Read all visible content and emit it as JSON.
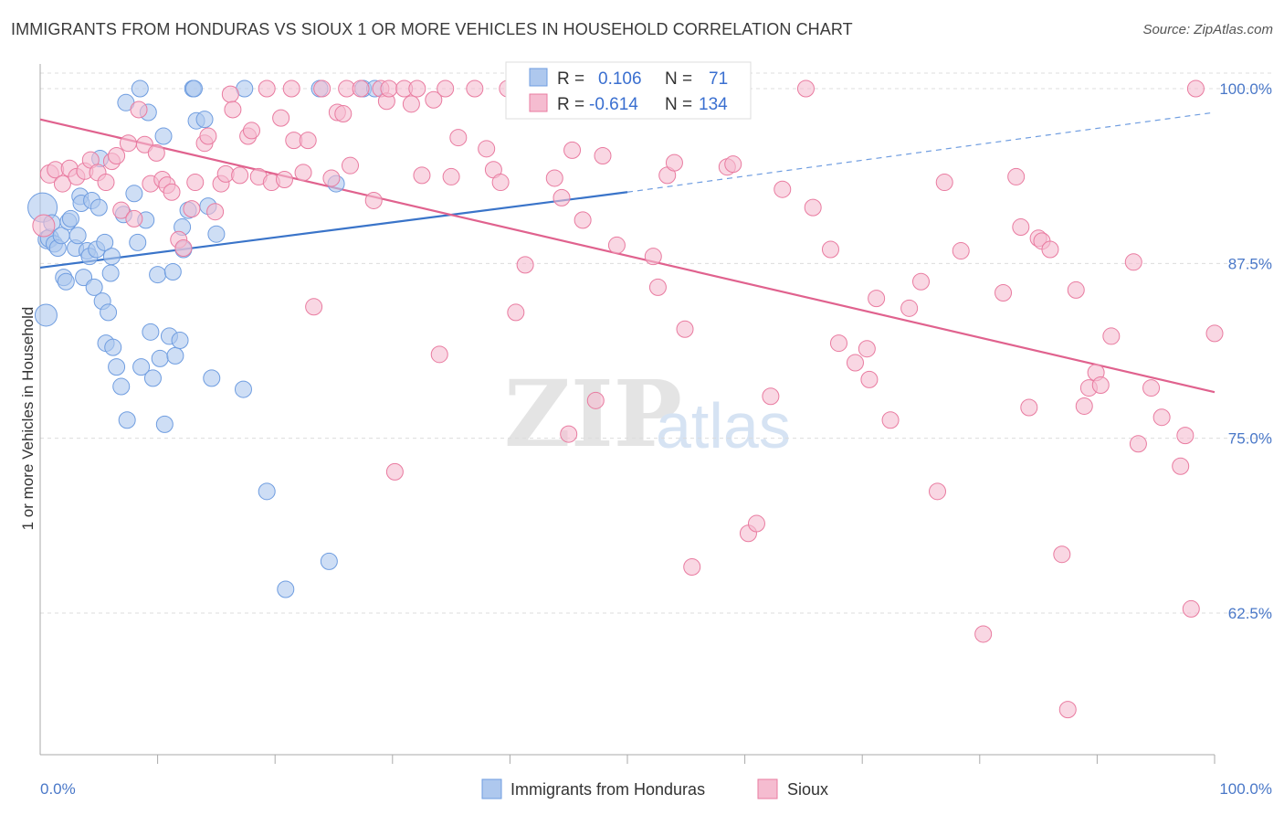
{
  "header": {
    "title": "IMMIGRANTS FROM HONDURAS VS SIOUX 1 OR MORE VEHICLES IN HOUSEHOLD CORRELATION CHART",
    "source": "Source: ZipAtlas.com"
  },
  "watermark": {
    "zip": "ZIP",
    "atlas": "atlas"
  },
  "chart_data": {
    "type": "scatter",
    "title": "IMMIGRANTS FROM HONDURAS VS SIOUX 1 OR MORE VEHICLES IN HOUSEHOLD CORRELATION CHART",
    "xlabel": "",
    "ylabel": "1 or more Vehicles in Household",
    "xlim": [
      0,
      100
    ],
    "ylim": [
      52,
      101
    ],
    "x_tick_labels": [
      "0.0%",
      "100.0%"
    ],
    "y_ticks": [
      {
        "value": 100.0,
        "label": "100.0%"
      },
      {
        "value": 87.5,
        "label": "87.5%"
      },
      {
        "value": 75.0,
        "label": "75.0%"
      },
      {
        "value": 62.5,
        "label": "62.5%"
      }
    ],
    "grid": "horizontal dashed",
    "legend_position": "bottom-center",
    "stats_box": {
      "position": "top-center",
      "rows": [
        {
          "r_label": "R =",
          "r_value": "0.106",
          "n_label": "N =",
          "n_value": "71"
        },
        {
          "r_label": "R =",
          "r_value": "-0.614",
          "n_label": "N =",
          "n_value": "134"
        }
      ]
    },
    "series": [
      {
        "name": "Immigrants from Honduras",
        "color": "#6f9de0",
        "fill": "#aec8ee",
        "trend": {
          "x0": 0,
          "y0": 87.2,
          "x1": 50,
          "y1": 92.6,
          "dash_to": 100,
          "dash_y": 98.3
        },
        "points": [
          [
            0.2,
            91.5,
            16
          ],
          [
            0.5,
            83.8,
            12
          ],
          [
            0.6,
            89.2,
            10
          ],
          [
            0.8,
            89.3,
            10
          ],
          [
            1.0,
            90.4,
            9
          ],
          [
            1.2,
            88.9,
            9
          ],
          [
            1.5,
            88.6,
            9
          ],
          [
            1.8,
            89.5,
            9
          ],
          [
            2.0,
            86.5,
            9
          ],
          [
            2.2,
            86.2,
            9
          ],
          [
            2.4,
            90.5,
            9
          ],
          [
            2.6,
            90.7,
            9
          ],
          [
            3.0,
            88.6,
            9
          ],
          [
            3.2,
            89.5,
            9
          ],
          [
            3.4,
            92.3,
            9
          ],
          [
            3.5,
            91.8,
            9
          ],
          [
            3.7,
            86.5,
            9
          ],
          [
            4.0,
            88.4,
            9
          ],
          [
            4.2,
            88.0,
            9
          ],
          [
            4.4,
            92.0,
            9
          ],
          [
            4.6,
            85.8,
            9
          ],
          [
            4.8,
            88.5,
            9
          ],
          [
            5.0,
            91.5,
            9
          ],
          [
            5.1,
            95.0,
            9
          ],
          [
            5.3,
            84.8,
            9
          ],
          [
            5.5,
            89.0,
            9
          ],
          [
            5.6,
            81.8,
            9
          ],
          [
            5.8,
            84.0,
            9
          ],
          [
            6.1,
            88.0,
            9
          ],
          [
            6.0,
            86.8,
            9
          ],
          [
            6.2,
            81.5,
            9
          ],
          [
            6.5,
            80.1,
            9
          ],
          [
            6.9,
            78.7,
            9
          ],
          [
            7.1,
            91.0,
            9
          ],
          [
            7.3,
            99.0,
            9
          ],
          [
            7.4,
            76.3,
            9
          ],
          [
            8.0,
            92.5,
            9
          ],
          [
            8.3,
            89.0,
            9
          ],
          [
            8.5,
            100.0,
            9
          ],
          [
            8.6,
            80.1,
            9
          ],
          [
            9.0,
            90.6,
            9
          ],
          [
            9.2,
            98.3,
            9
          ],
          [
            9.4,
            82.6,
            9
          ],
          [
            9.6,
            79.3,
            9
          ],
          [
            10.0,
            86.7,
            9
          ],
          [
            10.2,
            80.7,
            9
          ],
          [
            10.5,
            96.6,
            9
          ],
          [
            10.6,
            76.0,
            9
          ],
          [
            11.0,
            82.3,
            9
          ],
          [
            11.3,
            86.9,
            9
          ],
          [
            11.5,
            80.9,
            9
          ],
          [
            11.9,
            82.0,
            9
          ],
          [
            12.1,
            90.1,
            9
          ],
          [
            12.2,
            88.5,
            9
          ],
          [
            12.6,
            91.3,
            9
          ],
          [
            13.0,
            100.0,
            9
          ],
          [
            13.1,
            100.0,
            9
          ],
          [
            13.3,
            97.7,
            9
          ],
          [
            14.0,
            97.8,
            9
          ],
          [
            14.3,
            91.6,
            9
          ],
          [
            14.6,
            79.3,
            9
          ],
          [
            15.0,
            89.6,
            9
          ],
          [
            17.3,
            78.5,
            9
          ],
          [
            17.4,
            100.0,
            9
          ],
          [
            19.3,
            71.2,
            9
          ],
          [
            20.9,
            64.2,
            9
          ],
          [
            23.8,
            100.0,
            9
          ],
          [
            25.2,
            93.2,
            9
          ],
          [
            24.6,
            66.2,
            9
          ],
          [
            27.5,
            100.0,
            9
          ],
          [
            28.5,
            100.0,
            9
          ],
          [
            42.0,
            100.0,
            9
          ]
        ]
      },
      {
        "name": "Sioux",
        "color": "#e97ba0",
        "fill": "#f5bcd0",
        "trend": {
          "x0": 0,
          "y0": 97.8,
          "x1": 100,
          "y1": 78.3
        },
        "points": [
          [
            0.3,
            90.2,
            12
          ],
          [
            0.8,
            93.9,
            10
          ],
          [
            1.3,
            94.2,
            9
          ],
          [
            1.9,
            93.2,
            9
          ],
          [
            2.5,
            94.3,
            9
          ],
          [
            3.1,
            93.7,
            9
          ],
          [
            3.8,
            94.1,
            9
          ],
          [
            4.3,
            94.9,
            9
          ],
          [
            4.9,
            94.0,
            9
          ],
          [
            5.6,
            93.3,
            9
          ],
          [
            6.1,
            94.8,
            9
          ],
          [
            6.5,
            95.2,
            9
          ],
          [
            6.9,
            91.3,
            9
          ],
          [
            7.5,
            96.1,
            9
          ],
          [
            8.0,
            90.7,
            9
          ],
          [
            8.4,
            98.5,
            9
          ],
          [
            8.9,
            96.0,
            9
          ],
          [
            9.4,
            93.2,
            9
          ],
          [
            9.9,
            95.4,
            9
          ],
          [
            10.4,
            93.5,
            9
          ],
          [
            10.8,
            93.1,
            9
          ],
          [
            11.2,
            92.6,
            9
          ],
          [
            11.8,
            89.2,
            9
          ],
          [
            12.2,
            88.6,
            9
          ],
          [
            12.9,
            91.4,
            9
          ],
          [
            13.2,
            93.3,
            9
          ],
          [
            14.0,
            96.1,
            9
          ],
          [
            14.3,
            96.6,
            9
          ],
          [
            14.9,
            91.2,
            9
          ],
          [
            15.4,
            93.2,
            9
          ],
          [
            15.8,
            93.9,
            9
          ],
          [
            16.2,
            99.6,
            9
          ],
          [
            16.4,
            98.5,
            9
          ],
          [
            17.0,
            93.8,
            9
          ],
          [
            17.7,
            96.6,
            9
          ],
          [
            18.0,
            97.0,
            9
          ],
          [
            18.6,
            93.7,
            9
          ],
          [
            19.3,
            100.0,
            9
          ],
          [
            19.7,
            93.3,
            9
          ],
          [
            20.5,
            97.9,
            9
          ],
          [
            20.8,
            93.5,
            9
          ],
          [
            21.4,
            100.0,
            9
          ],
          [
            21.6,
            96.3,
            9
          ],
          [
            22.4,
            94.0,
            9
          ],
          [
            22.8,
            96.3,
            9
          ],
          [
            23.3,
            84.4,
            9
          ],
          [
            24.0,
            100.0,
            9
          ],
          [
            24.8,
            93.6,
            9
          ],
          [
            25.3,
            98.3,
            9
          ],
          [
            25.8,
            98.2,
            9
          ],
          [
            26.1,
            100.0,
            9
          ],
          [
            26.4,
            94.5,
            9
          ],
          [
            27.3,
            100.0,
            9
          ],
          [
            28.4,
            92.0,
            9
          ],
          [
            29.0,
            100.0,
            9
          ],
          [
            29.5,
            99.1,
            9
          ],
          [
            29.7,
            100.0,
            9
          ],
          [
            30.2,
            72.6,
            9
          ],
          [
            31.0,
            100.0,
            9
          ],
          [
            31.6,
            98.9,
            9
          ],
          [
            32.1,
            100.0,
            9
          ],
          [
            32.5,
            93.8,
            9
          ],
          [
            33.5,
            99.2,
            9
          ],
          [
            34.0,
            81.0,
            9
          ],
          [
            34.5,
            100.0,
            9
          ],
          [
            35.0,
            93.7,
            9
          ],
          [
            35.6,
            96.5,
            9
          ],
          [
            37.0,
            100.0,
            9
          ],
          [
            38.0,
            95.7,
            9
          ],
          [
            38.6,
            94.2,
            9
          ],
          [
            39.2,
            93.3,
            9
          ],
          [
            39.8,
            100.0,
            9
          ],
          [
            40.5,
            84.0,
            9
          ],
          [
            41.3,
            87.4,
            9
          ],
          [
            42.4,
            100.0,
            9
          ],
          [
            43.8,
            93.6,
            9
          ],
          [
            44.4,
            92.2,
            9
          ],
          [
            45.0,
            75.3,
            9
          ],
          [
            45.3,
            95.6,
            9
          ],
          [
            46.2,
            90.6,
            9
          ],
          [
            47.3,
            77.7,
            9
          ],
          [
            47.9,
            95.2,
            9
          ],
          [
            49.1,
            88.8,
            9
          ],
          [
            50.6,
            100.0,
            9
          ],
          [
            52.2,
            88.0,
            9
          ],
          [
            52.6,
            85.8,
            9
          ],
          [
            53.4,
            93.8,
            9
          ],
          [
            54.0,
            94.7,
            9
          ],
          [
            54.9,
            82.8,
            9
          ],
          [
            55.5,
            65.8,
            9
          ],
          [
            58.5,
            94.4,
            9
          ],
          [
            59.0,
            94.6,
            9
          ],
          [
            60.3,
            68.2,
            9
          ],
          [
            61.0,
            68.9,
            9
          ],
          [
            62.2,
            78.0,
            9
          ],
          [
            63.2,
            92.8,
            9
          ],
          [
            65.2,
            100.0,
            9
          ],
          [
            65.8,
            91.5,
            9
          ],
          [
            67.3,
            88.5,
            9
          ],
          [
            68.0,
            81.8,
            9
          ],
          [
            69.4,
            80.4,
            9
          ],
          [
            70.4,
            81.4,
            9
          ],
          [
            70.6,
            79.2,
            9
          ],
          [
            71.2,
            85.0,
            9
          ],
          [
            72.4,
            76.3,
            9
          ],
          [
            74.0,
            84.3,
            9
          ],
          [
            75.0,
            86.2,
            9
          ],
          [
            76.4,
            71.2,
            9
          ],
          [
            77.0,
            93.3,
            9
          ],
          [
            78.4,
            88.4,
            9
          ],
          [
            80.3,
            61.0,
            9
          ],
          [
            82.0,
            85.4,
            9
          ],
          [
            83.1,
            93.7,
            9
          ],
          [
            83.5,
            90.1,
            9
          ],
          [
            84.2,
            77.2,
            9
          ],
          [
            85.0,
            89.3,
            9
          ],
          [
            85.3,
            89.1,
            9
          ],
          [
            86.0,
            88.5,
            9
          ],
          [
            87.0,
            66.7,
            9
          ],
          [
            88.2,
            85.6,
            9
          ],
          [
            88.9,
            77.3,
            9
          ],
          [
            89.3,
            78.6,
            9
          ],
          [
            89.9,
            79.7,
            9
          ],
          [
            90.3,
            78.8,
            9
          ],
          [
            91.2,
            82.3,
            9
          ],
          [
            93.1,
            87.6,
            9
          ],
          [
            93.5,
            74.6,
            9
          ],
          [
            94.6,
            78.6,
            9
          ],
          [
            95.5,
            76.5,
            9
          ],
          [
            97.1,
            73.0,
            9
          ],
          [
            97.5,
            75.2,
            9
          ],
          [
            98.0,
            62.8,
            9
          ],
          [
            98.4,
            100.0,
            9
          ],
          [
            100.0,
            82.5,
            9
          ],
          [
            87.5,
            55.6,
            9
          ]
        ]
      }
    ]
  }
}
